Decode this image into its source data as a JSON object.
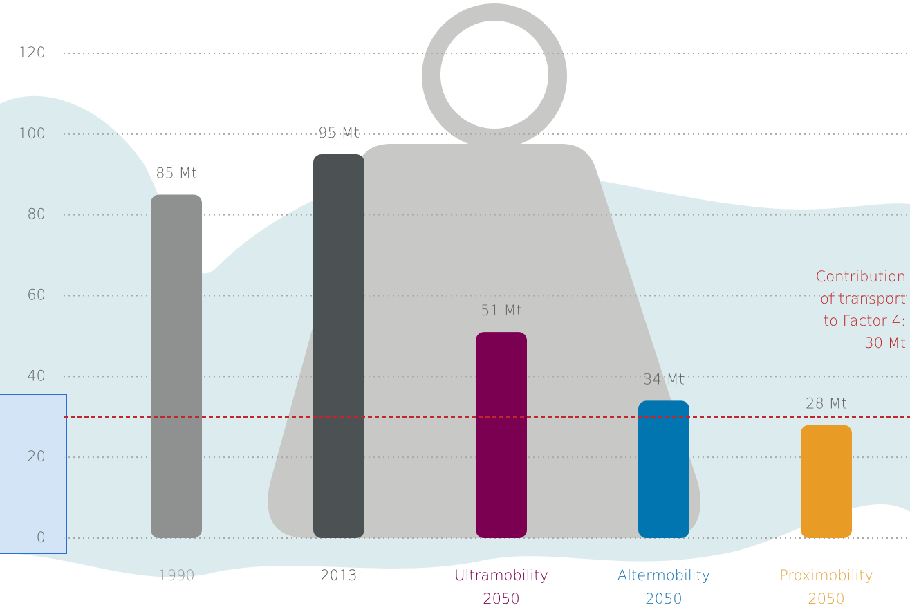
{
  "chart_data": {
    "type": "bar",
    "categories": [
      "1990",
      "2013",
      "Ultramobility\n2050",
      "Altermobility\n2050",
      "Proximobility\n2050"
    ],
    "values": [
      85,
      95,
      51,
      34,
      28
    ],
    "value_labels": [
      "85 Mt",
      "95 Mt",
      "51 Mt",
      "34 Mt",
      "28 Mt"
    ],
    "colors": [
      "#8f9190",
      "#4c5153",
      "#7b0052",
      "#0075b0",
      "#e89b25"
    ],
    "label_colors": [
      "#9a9a9a",
      "#555555",
      "#7b0052",
      "#1a75b0",
      "#e3a540"
    ],
    "ylim": [
      0,
      120
    ],
    "yticks": [
      0,
      20,
      40,
      60,
      80,
      100,
      120
    ],
    "grid": true,
    "reference_line": {
      "value": 30,
      "color": "#c0272d"
    },
    "annotation": "Contribution\nof transport\nto Factor 4:\n30 Mt"
  }
}
